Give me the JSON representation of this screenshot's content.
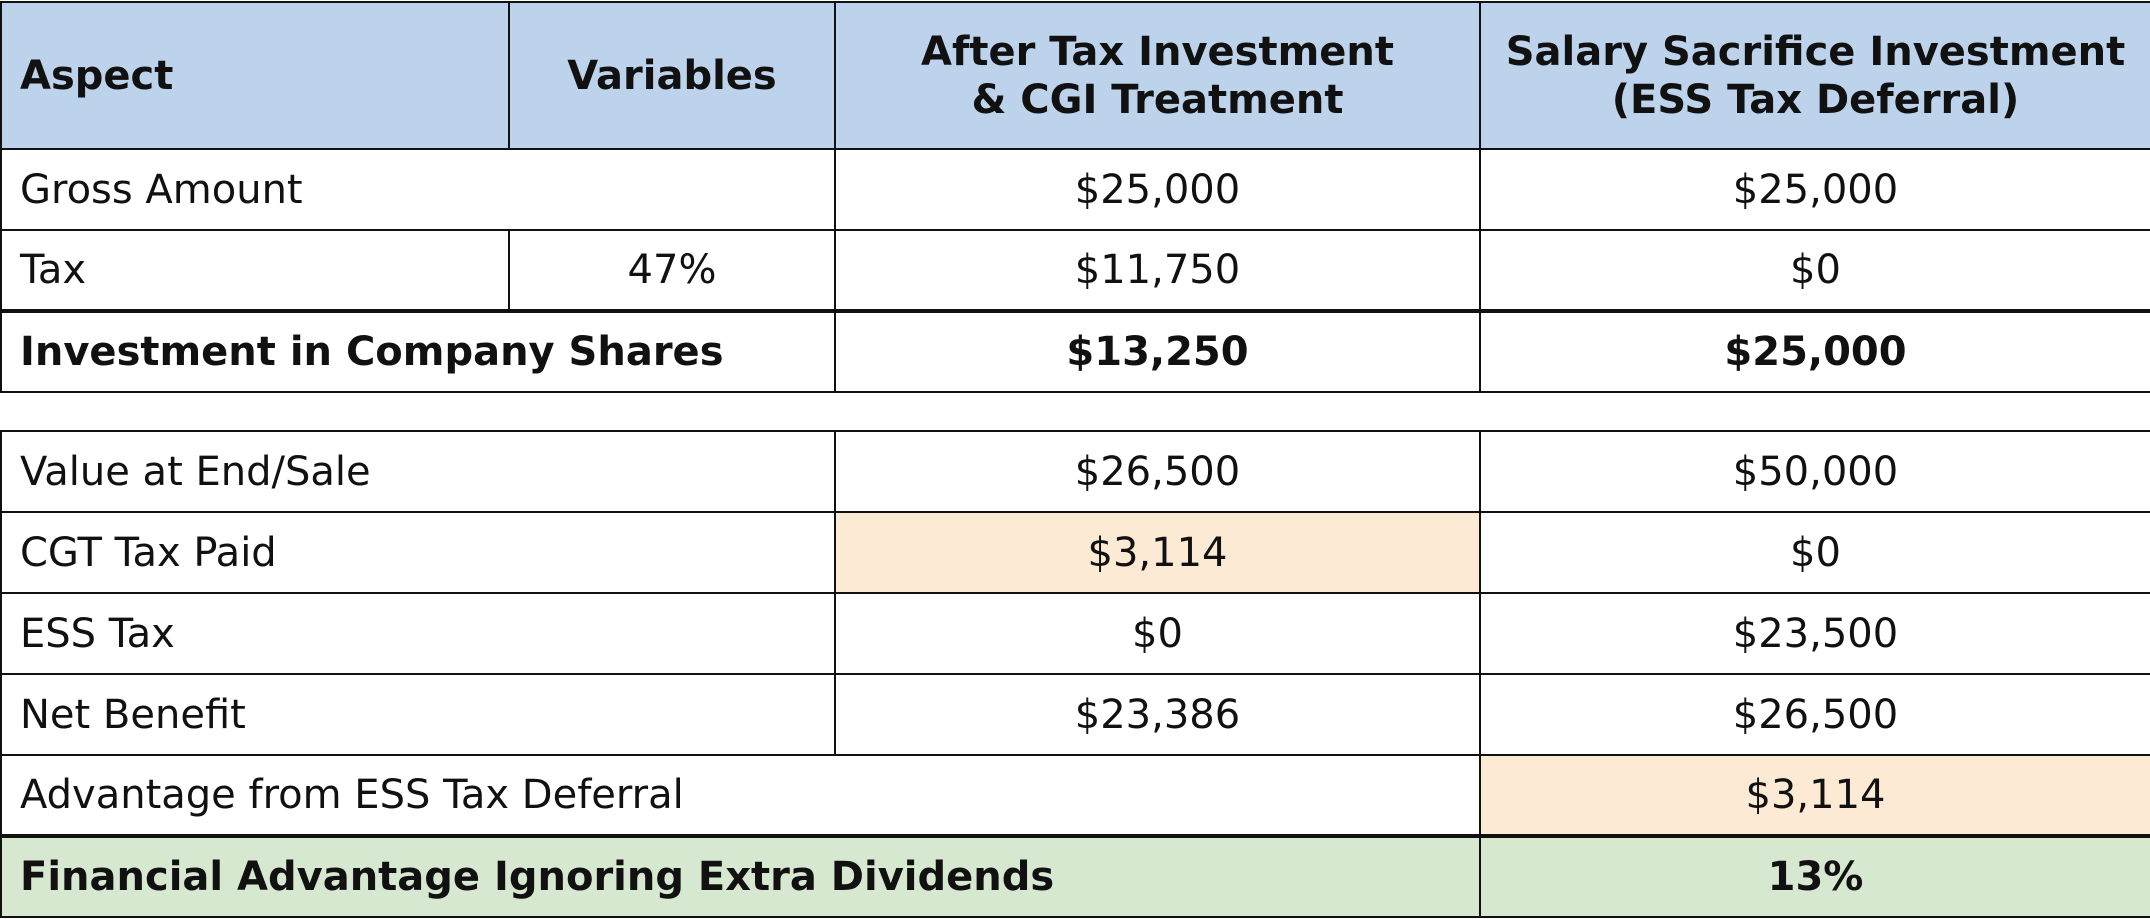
{
  "header": {
    "aspect": "Aspect",
    "variables": "Variables",
    "col_after_tax_line1": "After Tax Investment",
    "col_after_tax_line2": "& CGI Treatment",
    "col_salary_line1": "Salary Sacrifice Investment",
    "col_salary_line2": "(ESS Tax Deferral)"
  },
  "top_rows": {
    "gross": {
      "label": "Gross Amount",
      "after_tax": "$25,000",
      "salary": "$25,000"
    },
    "tax": {
      "label": "Tax",
      "variable": "47%",
      "after_tax": "$11,750",
      "salary": "$0"
    },
    "investment": {
      "label": "Investment in Company Shares",
      "after_tax": "$13,250",
      "salary": "$25,000"
    }
  },
  "bottom_rows": {
    "value_end": {
      "label": "Value at End/Sale",
      "after_tax": "$26,500",
      "salary": "$50,000"
    },
    "cgt_tax": {
      "label": "CGT Tax Paid",
      "after_tax": "$3,114",
      "salary": "$0"
    },
    "ess_tax": {
      "label": "ESS Tax",
      "after_tax": "$0",
      "salary": "$23,500"
    },
    "net_benefit": {
      "label": "Net Benefit",
      "after_tax": "$23,386",
      "salary": "$26,500"
    },
    "advantage": {
      "label": "Advantage from ESS Tax Deferral",
      "salary": "$3,114"
    },
    "financial_advantage": {
      "label": "Financial Advantage Ignoring Extra Dividends",
      "value": "13%"
    }
  },
  "colors": {
    "header_blue": "#bdd3ec",
    "highlight_peach": "#fcead4",
    "highlight_green": "#d6e8cf"
  }
}
